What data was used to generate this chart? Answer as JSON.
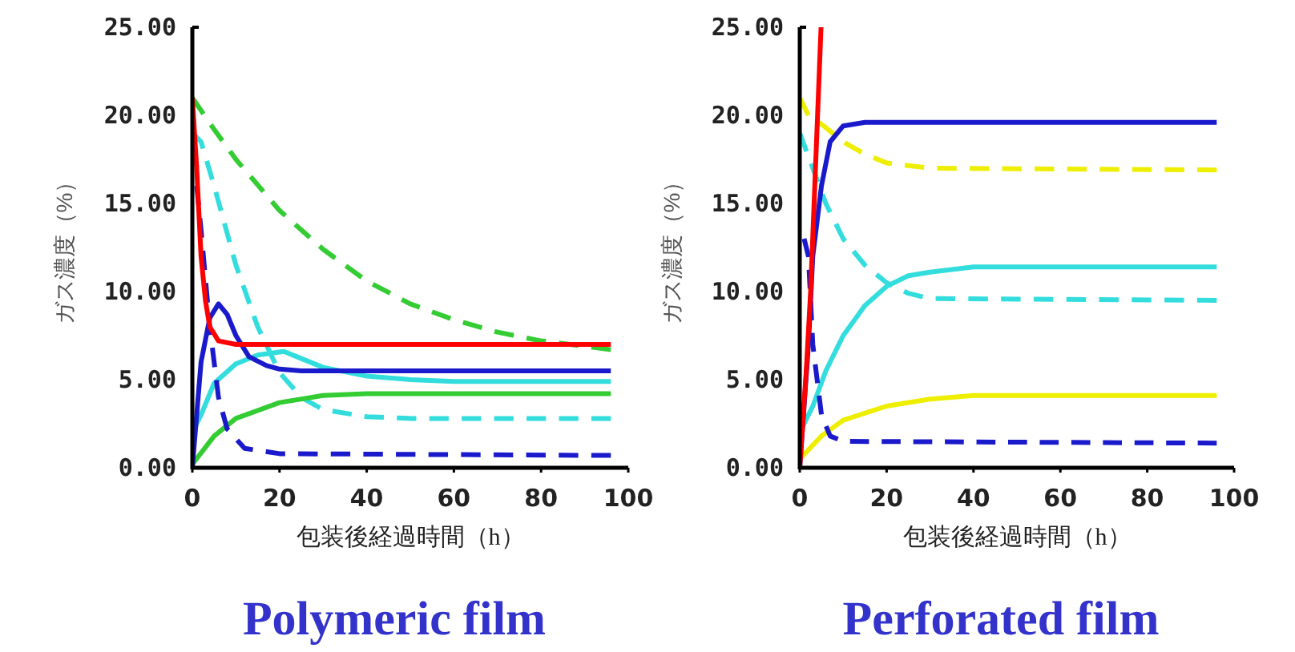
{
  "chart_data": [
    {
      "type": "line",
      "title": "Polymeric film",
      "xlabel": "包装後経過時間（h）",
      "ylabel": "ガス濃度（%）",
      "xlim": [
        0,
        100
      ],
      "ylim": [
        0,
        25
      ],
      "xticks": [
        0,
        20,
        40,
        60,
        80,
        100
      ],
      "yticks": [
        {
          "value": 0,
          "label": "0.00"
        },
        {
          "value": 5,
          "label": "5.00"
        },
        {
          "value": 10,
          "label": "10.00"
        },
        {
          "value": 15,
          "label": "15.00"
        },
        {
          "value": 20,
          "label": "20.00"
        },
        {
          "value": 25,
          "label": "25.00"
        }
      ],
      "grid": false,
      "series": [
        {
          "color": "#33cc33",
          "line_style": "dashed",
          "x": [
            0,
            5,
            10,
            20,
            30,
            40,
            50,
            60,
            70,
            80,
            90,
            96
          ],
          "values": [
            21,
            19.2,
            17.5,
            14.6,
            12.4,
            10.6,
            9.3,
            8.4,
            7.7,
            7.2,
            6.9,
            6.7
          ]
        },
        {
          "color": "#33dddd",
          "line_style": "dashed",
          "x": [
            0,
            2,
            5,
            10,
            15,
            20,
            25,
            30,
            40,
            50,
            96
          ],
          "values": [
            19,
            18.5,
            16,
            11.5,
            8,
            5.4,
            4,
            3.3,
            2.9,
            2.8,
            2.8
          ]
        },
        {
          "color": "#33dddd",
          "line_style": "solid",
          "x": [
            0,
            2,
            5,
            10,
            15,
            21,
            25,
            30,
            40,
            50,
            60,
            96
          ],
          "values": [
            2,
            3,
            4.8,
            5.9,
            6.4,
            6.6,
            6.2,
            5.7,
            5.2,
            5,
            4.9,
            4.9
          ]
        },
        {
          "color": "#33cc33",
          "line_style": "solid",
          "x": [
            0,
            5,
            10,
            20,
            30,
            40,
            96
          ],
          "values": [
            0.2,
            1.8,
            2.8,
            3.7,
            4.1,
            4.2,
            4.2
          ]
        },
        {
          "color": "#1a1acc",
          "line_style": "dashed",
          "x": [
            1,
            2,
            4,
            6,
            8,
            12,
            20,
            96
          ],
          "values": [
            16,
            13.5,
            8,
            4,
            2.2,
            1.1,
            0.8,
            0.7
          ]
        },
        {
          "color": "#1a1acc",
          "line_style": "solid",
          "x": [
            0,
            2,
            4,
            6,
            8,
            10,
            13,
            17,
            20,
            25,
            96
          ],
          "values": [
            0,
            6,
            8.5,
            9.3,
            8.7,
            7.5,
            6.3,
            5.8,
            5.6,
            5.5,
            5.5
          ]
        },
        {
          "color": "#ff0000",
          "line_style": "solid",
          "x": [
            0,
            1,
            2,
            3,
            4,
            6,
            10,
            96
          ],
          "values": [
            21,
            17,
            12,
            9.5,
            8,
            7.2,
            7,
            7
          ]
        }
      ]
    },
    {
      "type": "line",
      "title": "Perforated film",
      "xlabel": "包装後経過時間（h）",
      "ylabel": "ガス濃度（%）",
      "xlim": [
        0,
        100
      ],
      "ylim": [
        0,
        25
      ],
      "xticks": [
        0,
        20,
        40,
        60,
        80,
        100
      ],
      "yticks": [
        {
          "value": 0,
          "label": "0.00"
        },
        {
          "value": 5,
          "label": "5.00"
        },
        {
          "value": 10,
          "label": "10.00"
        },
        {
          "value": 15,
          "label": "15.00"
        },
        {
          "value": 20,
          "label": "20.00"
        },
        {
          "value": 25,
          "label": "25.00"
        }
      ],
      "grid": false,
      "series": [
        {
          "color": "#eeee00",
          "line_style": "dashed",
          "x": [
            0,
            2,
            5,
            10,
            15,
            20,
            30,
            96
          ],
          "values": [
            21,
            20,
            19.5,
            18.5,
            17.8,
            17.3,
            17,
            16.9
          ]
        },
        {
          "color": "#33dddd",
          "line_style": "dashed",
          "x": [
            0,
            3,
            6,
            10,
            15,
            20,
            25,
            30,
            96
          ],
          "values": [
            19,
            17,
            15,
            13,
            11.5,
            10.5,
            9.9,
            9.6,
            9.5
          ]
        },
        {
          "color": "#33dddd",
          "line_style": "solid",
          "x": [
            0,
            3,
            6,
            10,
            15,
            20,
            25,
            30,
            40,
            96
          ],
          "values": [
            2,
            3.5,
            5.5,
            7.5,
            9.2,
            10.3,
            10.9,
            11.1,
            11.4,
            11.4
          ]
        },
        {
          "color": "#eeee00",
          "line_style": "solid",
          "x": [
            0,
            5,
            10,
            20,
            30,
            40,
            96
          ],
          "values": [
            0.5,
            1.8,
            2.7,
            3.5,
            3.9,
            4.1,
            4.1
          ]
        },
        {
          "color": "#1a1acc",
          "line_style": "dashed",
          "x": [
            1,
            2,
            3,
            5,
            7,
            10,
            96
          ],
          "values": [
            13,
            12,
            7,
            3,
            1.8,
            1.5,
            1.4
          ]
        },
        {
          "color": "#1a1acc",
          "line_style": "solid",
          "x": [
            0,
            2,
            3,
            5,
            7,
            10,
            15,
            96
          ],
          "values": [
            0,
            7,
            12,
            16,
            18.5,
            19.4,
            19.6,
            19.6
          ]
        },
        {
          "color": "#ff0000",
          "line_style": "solid",
          "x": [
            0,
            1.5,
            2.5,
            3.3,
            4.1,
            4.9
          ],
          "values": [
            0,
            5.5,
            10,
            15,
            20,
            25
          ]
        }
      ]
    }
  ]
}
